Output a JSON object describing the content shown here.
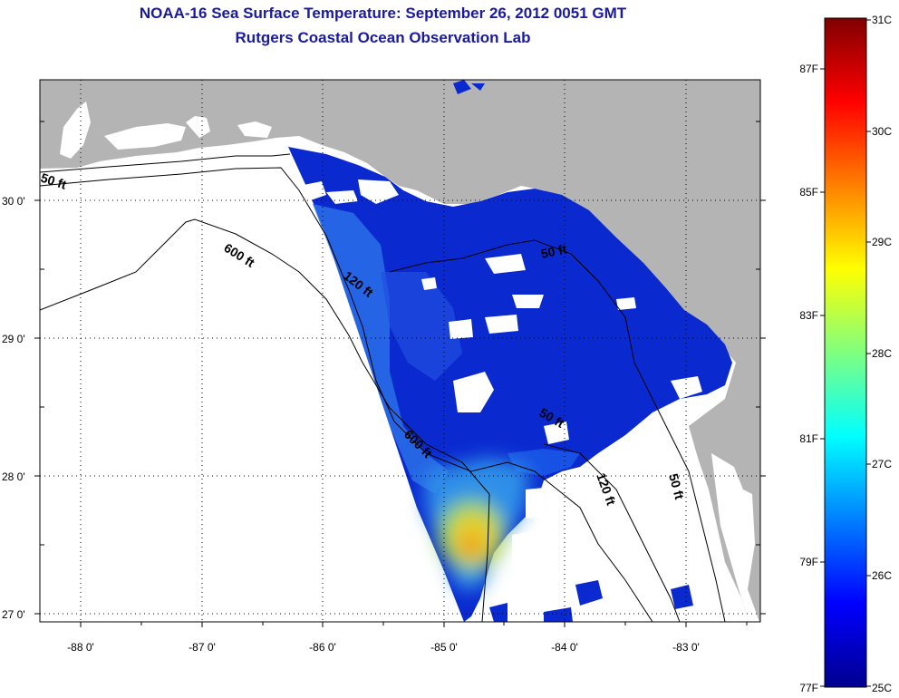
{
  "title": {
    "line1": "NOAA-16 Sea Surface Temperature:  September 26, 2012 0051 GMT",
    "line2": "Rutgers Coastal Ocean Observation Lab"
  },
  "axes": {
    "lat_labels": [
      "30 0'",
      "29 0'",
      "28 0'",
      "27 0'"
    ],
    "lon_labels": [
      "-88 0'",
      "-87 0'",
      "-86 0'",
      "-85 0'",
      "-84 0'",
      "-83 0'"
    ]
  },
  "contour_labels": [
    "50 ft",
    "600 ft",
    "120 ft",
    "50 ft",
    "600 ft",
    "120 ft",
    "50 ft",
    "50 ft"
  ],
  "colorbar": {
    "celsius": [
      "31C",
      "30C",
      "29C",
      "28C",
      "27C",
      "26C",
      "25C"
    ],
    "fahrenheit": [
      "87F",
      "85F",
      "83F",
      "81F",
      "79F",
      "77F"
    ]
  }
}
